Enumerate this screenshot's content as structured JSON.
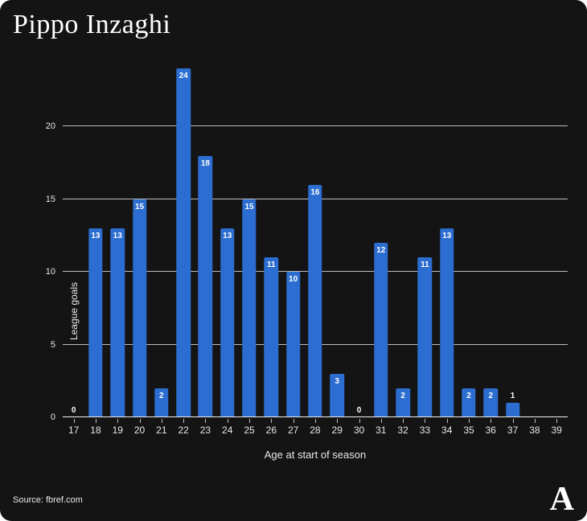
{
  "chart_data": {
    "type": "bar",
    "title": "Pippo Inzaghi",
    "xlabel": "Age at start of season",
    "ylabel": "League goals",
    "categories": [
      "17",
      "18",
      "19",
      "20",
      "21",
      "22",
      "23",
      "24",
      "25",
      "26",
      "27",
      "28",
      "29",
      "30",
      "31",
      "32",
      "33",
      "34",
      "35",
      "36",
      "37",
      "38",
      "39"
    ],
    "values": [
      0,
      13,
      13,
      15,
      2,
      24,
      18,
      13,
      15,
      11,
      10,
      16,
      3,
      0,
      12,
      2,
      11,
      13,
      2,
      2,
      1,
      null,
      null
    ],
    "yticks": [
      0,
      5,
      10,
      15,
      20
    ],
    "ylim": [
      0,
      24
    ],
    "grid": "horizontal",
    "bar_color": "#2b6dd0",
    "background_color": "#141414",
    "text_color": "#f2f2f2",
    "gridline_color": "#bdbdbd"
  },
  "footer": {
    "source": "Source: fbref.com",
    "logo_letter": "A"
  }
}
